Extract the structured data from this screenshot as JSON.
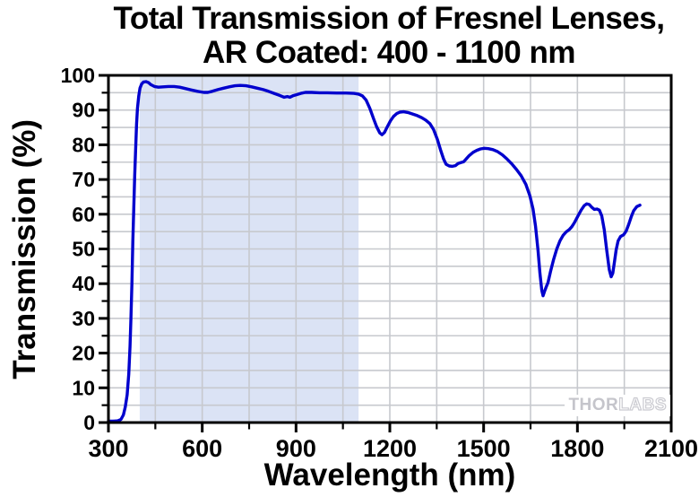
{
  "figure": {
    "title_line1": "Total Transmission of Fresnel Lenses,",
    "title_line2": "AR Coated: 400 - 1100 nm",
    "xlabel": "Wavelength (nm)",
    "ylabel": "Transmission (%)"
  },
  "watermark": {
    "part_solid": "THOR",
    "part_outline": "LABS"
  },
  "colors": {
    "line": "#0000cd",
    "band": "#dbe3f5",
    "grid": "#c7c9ce",
    "axis": "#000000",
    "watermark": "#c5c5cb"
  },
  "chart_data": {
    "type": "line",
    "title": "Total Transmission of Fresnel Lenses, AR Coated: 400 - 1100 nm",
    "xlabel": "Wavelength (nm)",
    "ylabel": "Transmission (%)",
    "xlim": [
      300,
      2100
    ],
    "ylim": [
      0,
      100
    ],
    "x_major_ticks": [
      300,
      600,
      900,
      1200,
      1500,
      1800,
      2100
    ],
    "x_minor_ticks": [
      450,
      750,
      1050,
      1350,
      1650,
      1950
    ],
    "y_major_ticks": [
      0,
      10,
      20,
      30,
      40,
      50,
      60,
      70,
      80,
      90,
      100
    ],
    "y_minor_ticks": [
      5,
      15,
      25,
      35,
      45,
      55,
      65,
      75,
      85,
      95
    ],
    "grid": "on, at every minor tick (150 nm horizontal spacing, 5% vertical spacing)",
    "legend": "none",
    "shaded_band_x": [
      400,
      1100
    ],
    "series": [
      {
        "name": "Total transmission, AR coated Fresnel lens",
        "points": [
          [
            300,
            0.4
          ],
          [
            315,
            0.4
          ],
          [
            330,
            0.5
          ],
          [
            340,
            0.9
          ],
          [
            348,
            2.2
          ],
          [
            354,
            4.5
          ],
          [
            360,
            8
          ],
          [
            365,
            14
          ],
          [
            369,
            22
          ],
          [
            372,
            30
          ],
          [
            375,
            40
          ],
          [
            378,
            52
          ],
          [
            381,
            62
          ],
          [
            384,
            71
          ],
          [
            387,
            79
          ],
          [
            390,
            86
          ],
          [
            393,
            90.5
          ],
          [
            397,
            94
          ],
          [
            401,
            96.3
          ],
          [
            406,
            97.5
          ],
          [
            412,
            98.1
          ],
          [
            420,
            98.2
          ],
          [
            428,
            97.9
          ],
          [
            436,
            97.3
          ],
          [
            447,
            96.8
          ],
          [
            460,
            96.6
          ],
          [
            475,
            96.7
          ],
          [
            492,
            96.8
          ],
          [
            510,
            96.8
          ],
          [
            528,
            96.6
          ],
          [
            546,
            96.2
          ],
          [
            565,
            95.8
          ],
          [
            585,
            95.4
          ],
          [
            605,
            95.1
          ],
          [
            618,
            95.1
          ],
          [
            632,
            95.4
          ],
          [
            650,
            95.9
          ],
          [
            668,
            96.3
          ],
          [
            686,
            96.7
          ],
          [
            705,
            97.0
          ],
          [
            722,
            97.1
          ],
          [
            740,
            97.0
          ],
          [
            758,
            96.7
          ],
          [
            776,
            96.3
          ],
          [
            795,
            95.9
          ],
          [
            812,
            95.4
          ],
          [
            830,
            94.8
          ],
          [
            848,
            94.2
          ],
          [
            862,
            93.7
          ],
          [
            872,
            93.9
          ],
          [
            880,
            93.7
          ],
          [
            890,
            94.1
          ],
          [
            900,
            94.4
          ],
          [
            915,
            94.8
          ],
          [
            930,
            95.1
          ],
          [
            950,
            95.1
          ],
          [
            975,
            95.0
          ],
          [
            1000,
            95.0
          ],
          [
            1030,
            94.9
          ],
          [
            1060,
            94.9
          ],
          [
            1085,
            94.8
          ],
          [
            1100,
            94.6
          ],
          [
            1112,
            94.1
          ],
          [
            1124,
            92.9
          ],
          [
            1136,
            90.5
          ],
          [
            1148,
            87.5
          ],
          [
            1158,
            85.2
          ],
          [
            1168,
            83.4
          ],
          [
            1175,
            82.9
          ],
          [
            1183,
            83.6
          ],
          [
            1192,
            85.2
          ],
          [
            1202,
            86.9
          ],
          [
            1212,
            88.2
          ],
          [
            1222,
            89.0
          ],
          [
            1232,
            89.4
          ],
          [
            1244,
            89.5
          ],
          [
            1258,
            89.3
          ],
          [
            1272,
            88.9
          ],
          [
            1288,
            88.4
          ],
          [
            1302,
            87.8
          ],
          [
            1315,
            87.1
          ],
          [
            1328,
            86.1
          ],
          [
            1340,
            84.4
          ],
          [
            1352,
            81.6
          ],
          [
            1362,
            78.6
          ],
          [
            1372,
            75.9
          ],
          [
            1380,
            74.4
          ],
          [
            1390,
            73.9
          ],
          [
            1400,
            73.8
          ],
          [
            1410,
            74.0
          ],
          [
            1418,
            74.6
          ],
          [
            1428,
            74.9
          ],
          [
            1436,
            75.1
          ],
          [
            1444,
            75.9
          ],
          [
            1454,
            76.9
          ],
          [
            1466,
            77.8
          ],
          [
            1478,
            78.4
          ],
          [
            1490,
            78.8
          ],
          [
            1502,
            79.0
          ],
          [
            1515,
            78.9
          ],
          [
            1530,
            78.6
          ],
          [
            1545,
            78.0
          ],
          [
            1560,
            77.1
          ],
          [
            1575,
            75.9
          ],
          [
            1590,
            74.5
          ],
          [
            1605,
            72.9
          ],
          [
            1620,
            71.1
          ],
          [
            1635,
            68.6
          ],
          [
            1648,
            65.3
          ],
          [
            1658,
            61.5
          ],
          [
            1666,
            56.5
          ],
          [
            1674,
            49.5
          ],
          [
            1680,
            43.0
          ],
          [
            1686,
            38.0
          ],
          [
            1690,
            36.5
          ],
          [
            1695,
            37.8
          ],
          [
            1700,
            39.0
          ],
          [
            1706,
            40.3
          ],
          [
            1714,
            43.5
          ],
          [
            1724,
            47.0
          ],
          [
            1734,
            50.0
          ],
          [
            1744,
            52.3
          ],
          [
            1754,
            53.9
          ],
          [
            1764,
            54.9
          ],
          [
            1774,
            55.6
          ],
          [
            1782,
            56.4
          ],
          [
            1790,
            57.5
          ],
          [
            1800,
            59.2
          ],
          [
            1812,
            61.2
          ],
          [
            1822,
            62.5
          ],
          [
            1830,
            63.0
          ],
          [
            1838,
            62.8
          ],
          [
            1846,
            62.0
          ],
          [
            1854,
            61.4
          ],
          [
            1862,
            61.5
          ],
          [
            1870,
            61.2
          ],
          [
            1878,
            59.5
          ],
          [
            1886,
            55.5
          ],
          [
            1894,
            49.5
          ],
          [
            1902,
            44.0
          ],
          [
            1908,
            42.0
          ],
          [
            1913,
            43.0
          ],
          [
            1918,
            46.0
          ],
          [
            1924,
            49.8
          ],
          [
            1930,
            52.3
          ],
          [
            1938,
            53.6
          ],
          [
            1948,
            54.1
          ],
          [
            1956,
            55.2
          ],
          [
            1964,
            57.1
          ],
          [
            1972,
            59.2
          ],
          [
            1980,
            61.0
          ],
          [
            1990,
            62.2
          ],
          [
            2000,
            62.6
          ]
        ]
      }
    ]
  }
}
